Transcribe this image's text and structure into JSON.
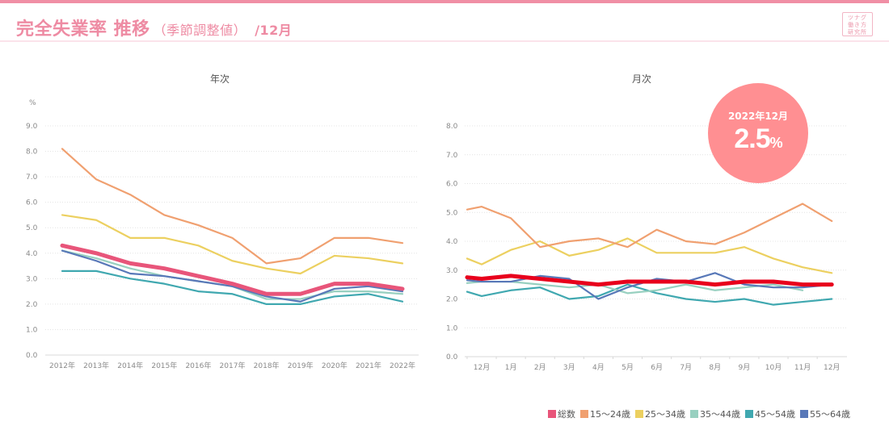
{
  "header": {
    "title": "完全失業率 推移",
    "subtitle": "（季節調整値）",
    "month": "/12月",
    "logo_lines": [
      "ツナグ",
      "働き方",
      "研究所"
    ]
  },
  "badge": {
    "date": "2022年12月",
    "value": "2.5",
    "unit": "%"
  },
  "colors": {
    "total_annual": "#e8557a",
    "total_monthly": "#e8001c",
    "age15_24": "#f0a070",
    "age25_34": "#ecd060",
    "age35_44": "#98d0c0",
    "age45_54": "#40a8b0",
    "age55_64": "#5878b8"
  },
  "legend": [
    {
      "label": "総数",
      "color": "#e8557a"
    },
    {
      "label": "15〜24歳",
      "color": "#f0a070"
    },
    {
      "label": "25〜34歳",
      "color": "#ecd060"
    },
    {
      "label": "35〜44歳",
      "color": "#98d0c0"
    },
    {
      "label": "45〜54歳",
      "color": "#40a8b0"
    },
    {
      "label": "55〜64歳",
      "color": "#5878b8"
    }
  ],
  "chart_data": [
    {
      "type": "line",
      "title": "年次",
      "ylabel": "%",
      "xlabel": "",
      "ylim": [
        0,
        9
      ],
      "yticks": [
        "0.0",
        "1.0",
        "2.0",
        "3.0",
        "4.0",
        "5.0",
        "6.0",
        "7.0",
        "8.0",
        "9.0"
      ],
      "grid": true,
      "categories": [
        "2012年",
        "2013年",
        "2014年",
        "2015年",
        "2016年",
        "2017年",
        "2018年",
        "2019年",
        "2020年",
        "2021年",
        "2022年"
      ],
      "series": [
        {
          "name": "45〜54歳",
          "key": "age45_54",
          "values": [
            3.3,
            3.3,
            3.0,
            2.8,
            2.5,
            2.4,
            2.0,
            2.0,
            2.3,
            2.4,
            2.1
          ]
        },
        {
          "name": "35〜44歳",
          "key": "age35_44",
          "values": [
            4.1,
            3.8,
            3.4,
            3.1,
            2.9,
            2.7,
            2.2,
            2.2,
            2.5,
            2.5,
            2.4
          ]
        },
        {
          "name": "55〜64歳",
          "key": "age55_64",
          "values": [
            4.1,
            3.7,
            3.2,
            3.1,
            2.9,
            2.7,
            2.3,
            2.1,
            2.6,
            2.7,
            2.5
          ]
        },
        {
          "name": "25〜34歳",
          "key": "age25_34",
          "values": [
            5.5,
            5.3,
            4.6,
            4.6,
            4.3,
            3.7,
            3.4,
            3.2,
            3.9,
            3.8,
            3.6
          ]
        },
        {
          "name": "15〜24歳",
          "key": "age15_24",
          "values": [
            8.1,
            6.9,
            6.3,
            5.5,
            5.1,
            4.6,
            3.6,
            3.8,
            4.6,
            4.6,
            4.4
          ]
        },
        {
          "name": "総数",
          "key": "total_annual",
          "values": [
            4.3,
            4.0,
            3.6,
            3.4,
            3.1,
            2.8,
            2.4,
            2.4,
            2.8,
            2.8,
            2.6
          ],
          "emphasis": true
        }
      ]
    },
    {
      "type": "line",
      "title": "月次",
      "ylabel": "",
      "xlabel": "",
      "ylim": [
        0,
        8
      ],
      "yticks": [
        "0.0",
        "1.0",
        "2.0",
        "3.0",
        "4.0",
        "5.0",
        "6.0",
        "7.0",
        "8.0"
      ],
      "grid": true,
      "categories": [
        "12月",
        "1月",
        "2月",
        "3月",
        "4月",
        "5月",
        "6月",
        "7月",
        "8月",
        "9月",
        "10月",
        "11月",
        "12月"
      ],
      "leading_value_note": "lines begin slightly left of the first 12月 tick",
      "series": [
        {
          "name": "45〜54歳",
          "key": "age45_54",
          "lead": 2.25,
          "values": [
            2.1,
            2.3,
            2.4,
            2.0,
            2.1,
            2.5,
            2.2,
            2.0,
            1.9,
            2.0,
            1.8,
            1.9,
            2.0
          ]
        },
        {
          "name": "35〜44歳",
          "key": "age35_44",
          "lead": 2.55,
          "values": [
            2.6,
            2.6,
            2.5,
            2.4,
            2.5,
            2.2,
            2.3,
            2.5,
            2.3,
            2.4,
            2.5,
            2.3,
            null
          ]
        },
        {
          "name": "55〜64歳",
          "key": "age55_64",
          "lead": 2.65,
          "values": [
            2.6,
            2.6,
            2.8,
            2.7,
            2.0,
            2.4,
            2.7,
            2.6,
            2.9,
            2.5,
            2.4,
            2.4,
            2.5
          ]
        },
        {
          "name": "25〜34歳",
          "key": "age25_34",
          "lead": 3.4,
          "values": [
            3.2,
            3.7,
            4.0,
            3.5,
            3.7,
            4.1,
            3.6,
            3.6,
            3.6,
            3.8,
            3.4,
            3.1,
            2.9
          ]
        },
        {
          "name": "15〜24歳",
          "key": "age15_24",
          "lead": 5.1,
          "values": [
            5.2,
            4.8,
            3.8,
            4.0,
            4.1,
            3.8,
            4.4,
            4.0,
            3.9,
            4.3,
            4.8,
            5.3,
            4.7
          ]
        },
        {
          "name": "総数",
          "key": "total_monthly",
          "lead": 2.75,
          "values": [
            2.7,
            2.8,
            2.7,
            2.6,
            2.5,
            2.6,
            2.6,
            2.6,
            2.5,
            2.6,
            2.6,
            2.5,
            2.5
          ],
          "emphasis": true
        }
      ]
    }
  ]
}
